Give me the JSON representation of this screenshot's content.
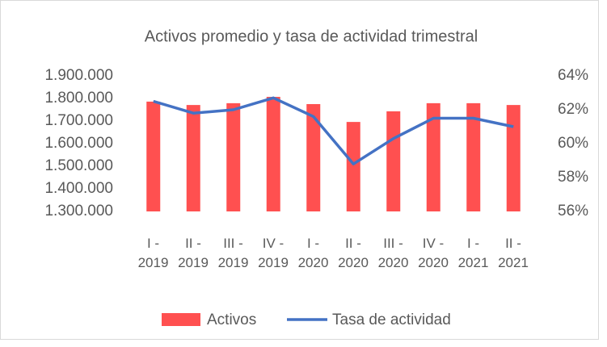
{
  "chart_data": {
    "type": "bar",
    "title": "Activos promedio y tasa de actividad trimestral",
    "categories": [
      "I - 2019",
      "II - 2019",
      "III - 2019",
      "IV - 2019",
      "I - 2020",
      "II - 2020",
      "III - 2020",
      "IV - 2020",
      "I - 2021",
      "II - 2021"
    ],
    "series": [
      {
        "name": "Activos",
        "type": "bar",
        "color": "#ff5050",
        "values": [
          1786000,
          1771000,
          1779000,
          1807000,
          1775000,
          1696000,
          1743000,
          1779000,
          1779000,
          1771000
        ]
      },
      {
        "name": "Tasa de actividad",
        "type": "line",
        "axis": "y2",
        "color": "#4472c4",
        "values": [
          62.5,
          61.8,
          62.0,
          62.7,
          61.6,
          58.8,
          60.3,
          61.5,
          61.5,
          61.0
        ]
      }
    ],
    "ylim": [
      1300000,
      1900000
    ],
    "yticks": [
      {
        "value": 1300000,
        "label": "1.300.000"
      },
      {
        "value": 1400000,
        "label": "1.400.000"
      },
      {
        "value": 1500000,
        "label": "1.500.000"
      },
      {
        "value": 1600000,
        "label": "1.600.000"
      },
      {
        "value": 1700000,
        "label": "1.700.000"
      },
      {
        "value": 1800000,
        "label": "1.800.000"
      },
      {
        "value": 1900000,
        "label": "1.900.000"
      }
    ],
    "y2lim": [
      56,
      64
    ],
    "y2ticks": [
      {
        "value": 56,
        "label": "56%"
      },
      {
        "value": 58,
        "label": "58%"
      },
      {
        "value": 60,
        "label": "60%"
      },
      {
        "value": 62,
        "label": "62%"
      },
      {
        "value": 64,
        "label": "64%"
      }
    ],
    "legend": "bottom"
  }
}
